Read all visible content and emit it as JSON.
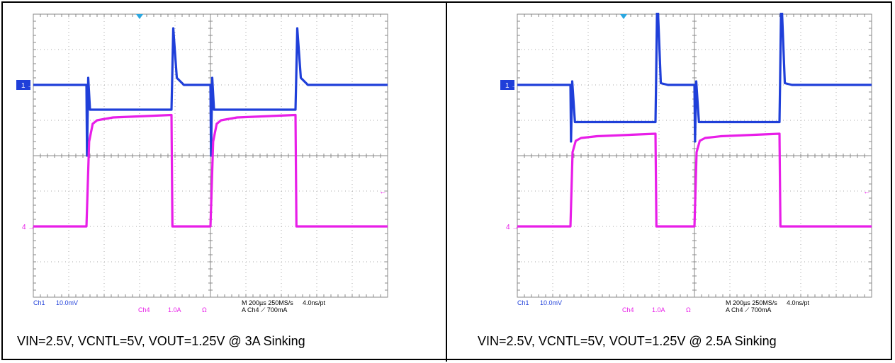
{
  "chart_data": [
    {
      "type": "line",
      "caption": "VIN=2.5V, VCNTL=5V, VOUT=1.25V @ 3A Sinking",
      "x_divisions": 10,
      "y_divisions": 8,
      "time_per_div_us": 200,
      "channels": {
        "ch1": {
          "label": "1",
          "scale_text": "10.0mV",
          "color": "#1f3fd9",
          "baseline_div": 2.0
        },
        "ch4": {
          "label": "4",
          "scale_text": "1.0A",
          "unit_text": "Ω",
          "color": "#e81ee8",
          "baseline_div": 6.0
        }
      },
      "series": [
        {
          "name": "Ch1",
          "color": "#1f3fd9",
          "x": [
            0,
            3.0,
            3.03,
            3.1,
            3.2,
            7.8,
            7.83,
            7.9,
            8.1,
            8.5,
            10.0,
            10.03,
            10.1,
            10.2,
            14.8,
            14.83,
            14.9,
            15.1,
            15.5,
            20.0
          ],
          "y": [
            0,
            0,
            -2.0,
            0.2,
            -0.7,
            -0.7,
            0,
            1.6,
            0.2,
            0,
            0,
            -2.0,
            0.2,
            -0.7,
            -0.7,
            0,
            1.6,
            0.2,
            0,
            0
          ]
        },
        {
          "name": "Ch4",
          "color": "#e81ee8",
          "x": [
            0,
            3.0,
            3.15,
            3.35,
            3.6,
            4.5,
            7.8,
            7.85,
            10.0,
            10.15,
            10.35,
            10.6,
            11.5,
            14.8,
            14.85,
            20.0
          ],
          "y": [
            0,
            0,
            2.4,
            2.9,
            3.0,
            3.08,
            3.15,
            0,
            0,
            2.4,
            2.9,
            3.0,
            3.08,
            3.15,
            0,
            0
          ]
        }
      ],
      "readout": {
        "ch1": "Ch1",
        "ch1_scale": "10.0mV",
        "ch4": "Ch4",
        "ch4_scale": "1.0A",
        "ch4_unit": "Ω",
        "timebase": "M 200µs 250MS/s",
        "sample": "4.0ns/pt",
        "trigger": "A  Ch4  ⟋  700mA"
      }
    },
    {
      "type": "line",
      "caption": "VIN=2.5V, VCNTL=5V, VOUT=1.25V @ 2.5A Sinking",
      "x_divisions": 10,
      "y_divisions": 8,
      "time_per_div_us": 200,
      "channels": {
        "ch1": {
          "label": "1",
          "scale_text": "10.0mV",
          "color": "#1f3fd9",
          "baseline_div": 2.0
        },
        "ch4": {
          "label": "4",
          "scale_text": "1.0A",
          "unit_text": "Ω",
          "color": "#e81ee8",
          "baseline_div": 6.0
        }
      },
      "series": [
        {
          "name": "Ch1",
          "color": "#1f3fd9",
          "x": [
            0,
            3.0,
            3.03,
            3.1,
            3.25,
            7.8,
            7.83,
            7.9,
            8.1,
            8.5,
            10.0,
            10.03,
            10.1,
            10.25,
            14.8,
            14.83,
            14.9,
            15.1,
            15.5,
            20.0
          ],
          "y": [
            0,
            0,
            -1.6,
            0.1,
            -1.05,
            -1.05,
            0,
            2.6,
            0.05,
            0,
            0,
            -1.6,
            0.1,
            -1.05,
            -1.05,
            0,
            2.6,
            0.05,
            0,
            0
          ]
        },
        {
          "name": "Ch4",
          "color": "#e81ee8",
          "x": [
            0,
            3.0,
            3.12,
            3.3,
            3.6,
            4.5,
            7.8,
            7.85,
            10.0,
            10.12,
            10.3,
            10.6,
            11.5,
            14.8,
            14.85,
            20.0
          ],
          "y": [
            0,
            0,
            2.1,
            2.42,
            2.5,
            2.55,
            2.62,
            0,
            0,
            2.1,
            2.42,
            2.5,
            2.55,
            2.62,
            0,
            0
          ]
        }
      ],
      "readout": {
        "ch1": "Ch1",
        "ch1_scale": "10.0mV",
        "ch4": "Ch4",
        "ch4_scale": "1.0A",
        "ch4_unit": "Ω",
        "timebase": "M 200µs 250MS/s",
        "sample": "4.0ns/pt",
        "trigger": "A  Ch4  ⟋  700mA"
      }
    }
  ]
}
